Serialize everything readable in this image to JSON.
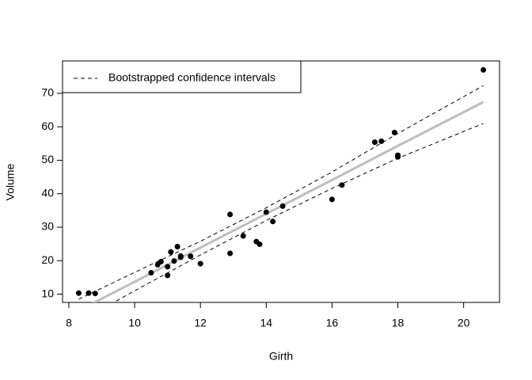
{
  "chart_data": {
    "type": "scatter",
    "xlabel": "Girth",
    "ylabel": "Volume",
    "x": [
      8.3,
      8.6,
      8.8,
      10.5,
      10.7,
      10.8,
      11.0,
      11.0,
      11.1,
      11.2,
      11.3,
      11.4,
      11.4,
      11.7,
      12.0,
      12.9,
      12.9,
      13.3,
      13.7,
      13.8,
      14.0,
      14.2,
      14.5,
      16.0,
      16.3,
      17.3,
      17.5,
      17.9,
      18.0,
      18.0,
      20.6
    ],
    "values": [
      10.3,
      10.3,
      10.2,
      16.4,
      18.8,
      19.7,
      15.6,
      18.2,
      22.6,
      19.9,
      24.2,
      21.0,
      21.4,
      21.3,
      19.1,
      22.2,
      33.8,
      27.4,
      25.7,
      24.9,
      34.5,
      31.7,
      36.3,
      38.3,
      42.6,
      55.4,
      55.7,
      58.3,
      51.5,
      51.0,
      77.0
    ],
    "color": "#000000",
    "fit": {
      "color": "#bebebe",
      "x": [
        8.3,
        10,
        12,
        14,
        16,
        18,
        20.6
      ],
      "values": [
        5.1,
        13.7,
        23.9,
        34.0,
        44.1,
        54.3,
        67.4
      ]
    },
    "ci": {
      "name": "Bootstrapped confidence intervals",
      "color": "#000000",
      "x": [
        8.3,
        10,
        12,
        14,
        16,
        18,
        20.6
      ],
      "upper": [
        8.5,
        16.5,
        25.8,
        35.8,
        46.5,
        58.0,
        72.3
      ],
      "lower": [
        1.8,
        11.0,
        21.7,
        32.0,
        41.6,
        50.6,
        61.0
      ]
    },
    "legend": "top-left",
    "xlim": [
      7.808,
      21.092
    ],
    "ylim": [
      7.528,
      79.672
    ],
    "xticks": [
      8,
      10,
      12,
      14,
      16,
      18,
      20
    ],
    "yticks": [
      10,
      20,
      30,
      40,
      50,
      60,
      70
    ]
  }
}
